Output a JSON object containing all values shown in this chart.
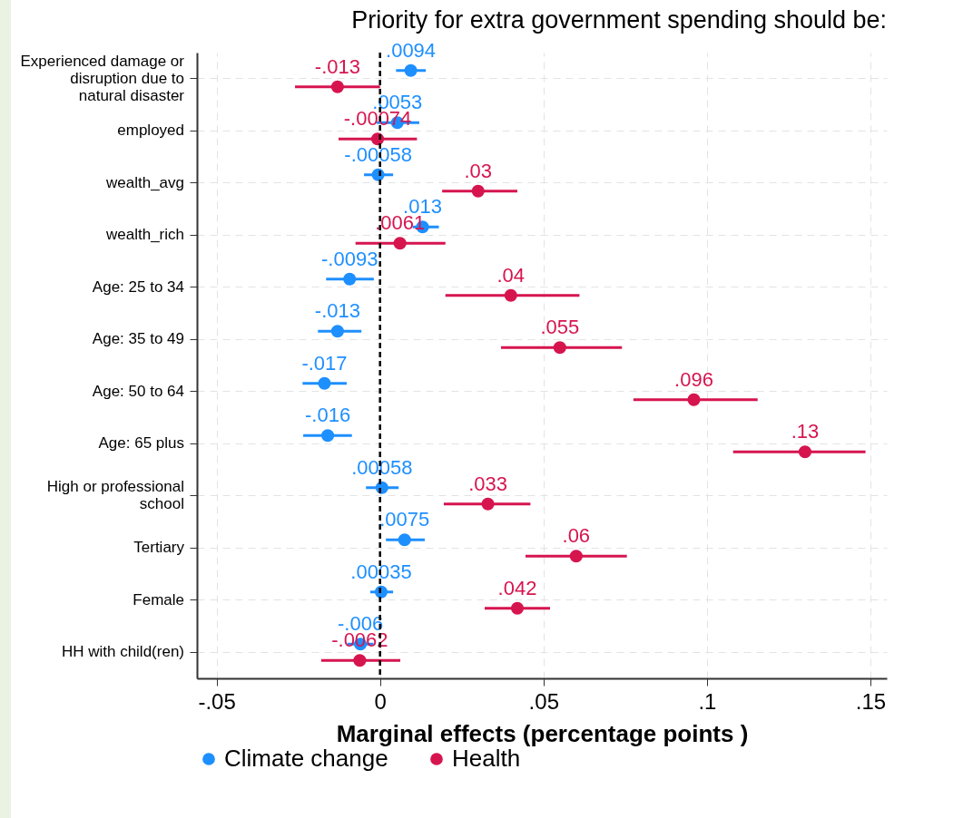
{
  "chart_data": {
    "type": "scatter",
    "orientation": "horizontal",
    "title": "Priority for extra government spending should be:",
    "xlabel": "Marginal effects (percentage points )",
    "categories": [
      "Experienced damage or disruption due to natural disaster",
      "employed",
      "wealth_avg",
      "wealth_rich",
      "Age: 25 to 34",
      "Age: 35 to 49",
      "Age: 50 to 64",
      "Age: 65 plus",
      "High or professional school",
      "Tertiary",
      "Female",
      "HH with child(ren)"
    ],
    "series": [
      {
        "name": "Climate change",
        "color": "#1e8fff",
        "values": [
          0.0094,
          0.0053,
          -0.00058,
          0.013,
          -0.0093,
          -0.013,
          -0.017,
          -0.016,
          0.00058,
          0.0075,
          0.00035,
          -0.006
        ],
        "value_labels": [
          ".0094",
          ".0053",
          "-.00058",
          ".013",
          "-.0093",
          "-.013",
          "-.017",
          "-.016",
          ".00058",
          ".0075",
          ".00035",
          "-.006"
        ],
        "errors": [
          [
            0.0049,
            0.014
          ],
          [
            -0.001,
            0.012
          ],
          [
            -0.0049,
            0.004
          ],
          [
            0.01,
            0.018
          ],
          [
            -0.0165,
            -0.0019
          ],
          [
            -0.019,
            -0.0057
          ],
          [
            -0.0237,
            -0.0102
          ],
          [
            -0.0235,
            -0.0086
          ],
          [
            -0.0043,
            0.0057
          ],
          [
            0.0018,
            0.0137
          ],
          [
            -0.003,
            0.004
          ],
          [
            -0.01,
            -0.002
          ]
        ]
      },
      {
        "name": "Health",
        "color": "#d6154f",
        "values": [
          -0.013,
          -0.00074,
          0.03,
          0.0061,
          0.04,
          0.055,
          0.096,
          0.13,
          0.033,
          0.06,
          0.042,
          -0.0062
        ],
        "value_labels": [
          "-.013",
          "-.00074",
          ".03",
          ".0061",
          ".04",
          ".055",
          ".096",
          ".13",
          ".033",
          ".06",
          ".042",
          "-.0062"
        ],
        "errors": [
          [
            -0.026,
            0
          ],
          [
            -0.0127,
            0.0113
          ],
          [
            0.019,
            0.042
          ],
          [
            -0.0075,
            0.02
          ],
          [
            0.02,
            0.061
          ],
          [
            0.037,
            0.074
          ],
          [
            0.0775,
            0.1155
          ],
          [
            0.108,
            0.1485
          ],
          [
            0.0195,
            0.046
          ],
          [
            0.0445,
            0.0755
          ],
          [
            0.032,
            0.052
          ],
          [
            -0.018,
            0.0062
          ]
        ]
      }
    ],
    "xlim": [
      -0.056,
      0.155
    ],
    "xticks": [
      {
        "value": -0.05,
        "label": "-.05"
      },
      0,
      {
        "value": 0.05,
        "label": ".05"
      },
      {
        "value": 0.1,
        "label": ".1"
      },
      {
        "value": 0.15,
        "label": ".15"
      }
    ],
    "ref_lines": [
      {
        "axis": "x",
        "value": 0,
        "color": "#000000",
        "line_style": "dashed"
      }
    ],
    "grid": true,
    "legend": "bottom",
    "marker": "circle"
  }
}
